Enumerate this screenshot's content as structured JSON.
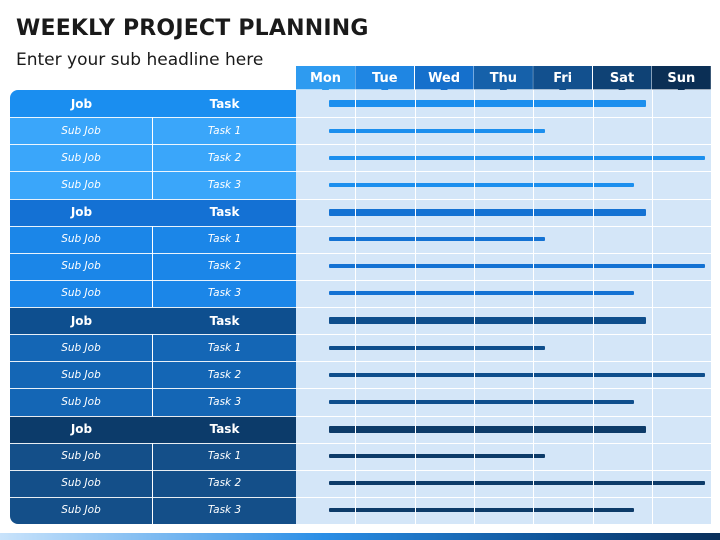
{
  "title": "WEEKLY PROJECT PLANNING",
  "subtitle": "Enter your sub headline here",
  "days": [
    {
      "label": "Mon",
      "color": "#2e9bf0"
    },
    {
      "label": "Tue",
      "color": "#1f86e3"
    },
    {
      "label": "Wed",
      "color": "#1570cc"
    },
    {
      "label": "Thu",
      "color": "#1661aa"
    },
    {
      "label": "Fri",
      "color": "#12508e"
    },
    {
      "label": "Sat",
      "color": "#0f4275"
    },
    {
      "label": "Sun",
      "color": "#0b2f55"
    }
  ],
  "groups": [
    {
      "job_color": "#1a8ef0",
      "sub_color": "#3aa6fa",
      "bar_color": "#1c8fee",
      "job": {
        "col1": "Job",
        "col2": "Task",
        "bar_end_day": 5.9
      },
      "rows": [
        {
          "col1": "Sub Job",
          "col2": "Task 1",
          "bar_end_day": 4.2
        },
        {
          "col1": "Sub Job",
          "col2": "Task 2",
          "bar_end_day": 6.9
        },
        {
          "col1": "Sub Job",
          "col2": "Task 3",
          "bar_end_day": 5.7
        }
      ]
    },
    {
      "job_color": "#1471d4",
      "sub_color": "#1b86e8",
      "bar_color": "#1472d3",
      "job": {
        "col1": "Job",
        "col2": "Task",
        "bar_end_day": 5.9
      },
      "rows": [
        {
          "col1": "Sub Job",
          "col2": "Task 1",
          "bar_end_day": 4.2
        },
        {
          "col1": "Sub Job",
          "col2": "Task 2",
          "bar_end_day": 6.9
        },
        {
          "col1": "Sub Job",
          "col2": "Task 3",
          "bar_end_day": 5.7
        }
      ]
    },
    {
      "job_color": "#0e4f8f",
      "sub_color": "#1466b5",
      "bar_color": "#0f4e8c",
      "job": {
        "col1": "Job",
        "col2": "Task",
        "bar_end_day": 5.9
      },
      "rows": [
        {
          "col1": "Sub Job",
          "col2": "Task 1",
          "bar_end_day": 4.2
        },
        {
          "col1": "Sub Job",
          "col2": "Task 2",
          "bar_end_day": 6.9
        },
        {
          "col1": "Sub Job",
          "col2": "Task 3",
          "bar_end_day": 5.7
        }
      ]
    },
    {
      "job_color": "#0c3b6a",
      "sub_color": "#144f89",
      "bar_color": "#0d3b69",
      "job": {
        "col1": "Job",
        "col2": "Task",
        "bar_end_day": 5.9
      },
      "rows": [
        {
          "col1": "Sub Job",
          "col2": "Task 1",
          "bar_end_day": 4.2
        },
        {
          "col1": "Sub Job",
          "col2": "Task 2",
          "bar_end_day": 6.9
        },
        {
          "col1": "Sub Job",
          "col2": "Task 3",
          "bar_end_day": 5.7
        }
      ]
    }
  ]
}
